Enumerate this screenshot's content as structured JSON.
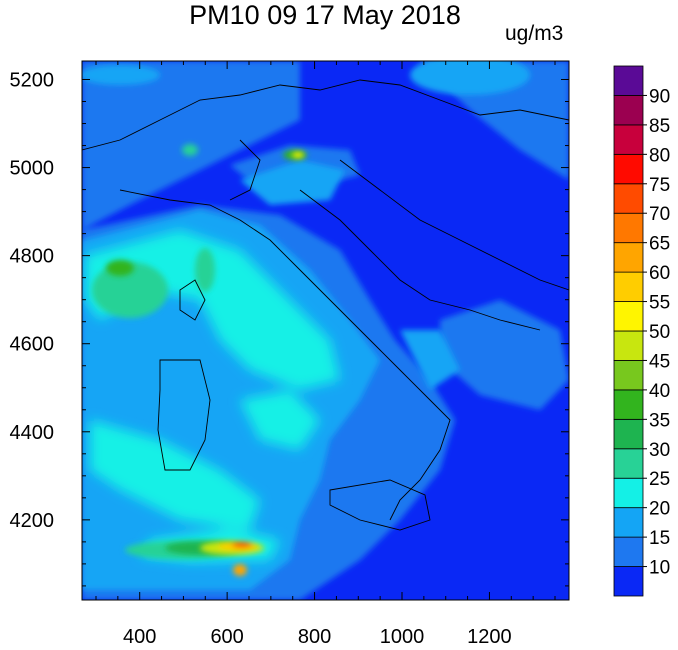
{
  "chart_data": {
    "type": "heatmap",
    "title": "PM10 09 17 May 2018",
    "units": "ug/m3",
    "xlim": [
      268,
      1382
    ],
    "ylim": [
      4018,
      5242
    ],
    "x_ticks": [
      400,
      600,
      800,
      1000,
      1200
    ],
    "y_ticks": [
      4200,
      4400,
      4600,
      4800,
      5000,
      5200
    ],
    "colorbar": {
      "levels": [
        10,
        15,
        20,
        25,
        30,
        35,
        40,
        45,
        50,
        55,
        60,
        65,
        70,
        75,
        80,
        85,
        90
      ],
      "colors": [
        "#0a28f5",
        "#1e78f0",
        "#14a5f5",
        "#14f0e6",
        "#28d296",
        "#1eb450",
        "#32b41e",
        "#78c81e",
        "#c8e60f",
        "#fff500",
        "#ffcd00",
        "#ffa500",
        "#ff7800",
        "#ff4b00",
        "#ff0a00",
        "#c8003c",
        "#9b0050",
        "#5a0a96"
      ]
    }
  }
}
